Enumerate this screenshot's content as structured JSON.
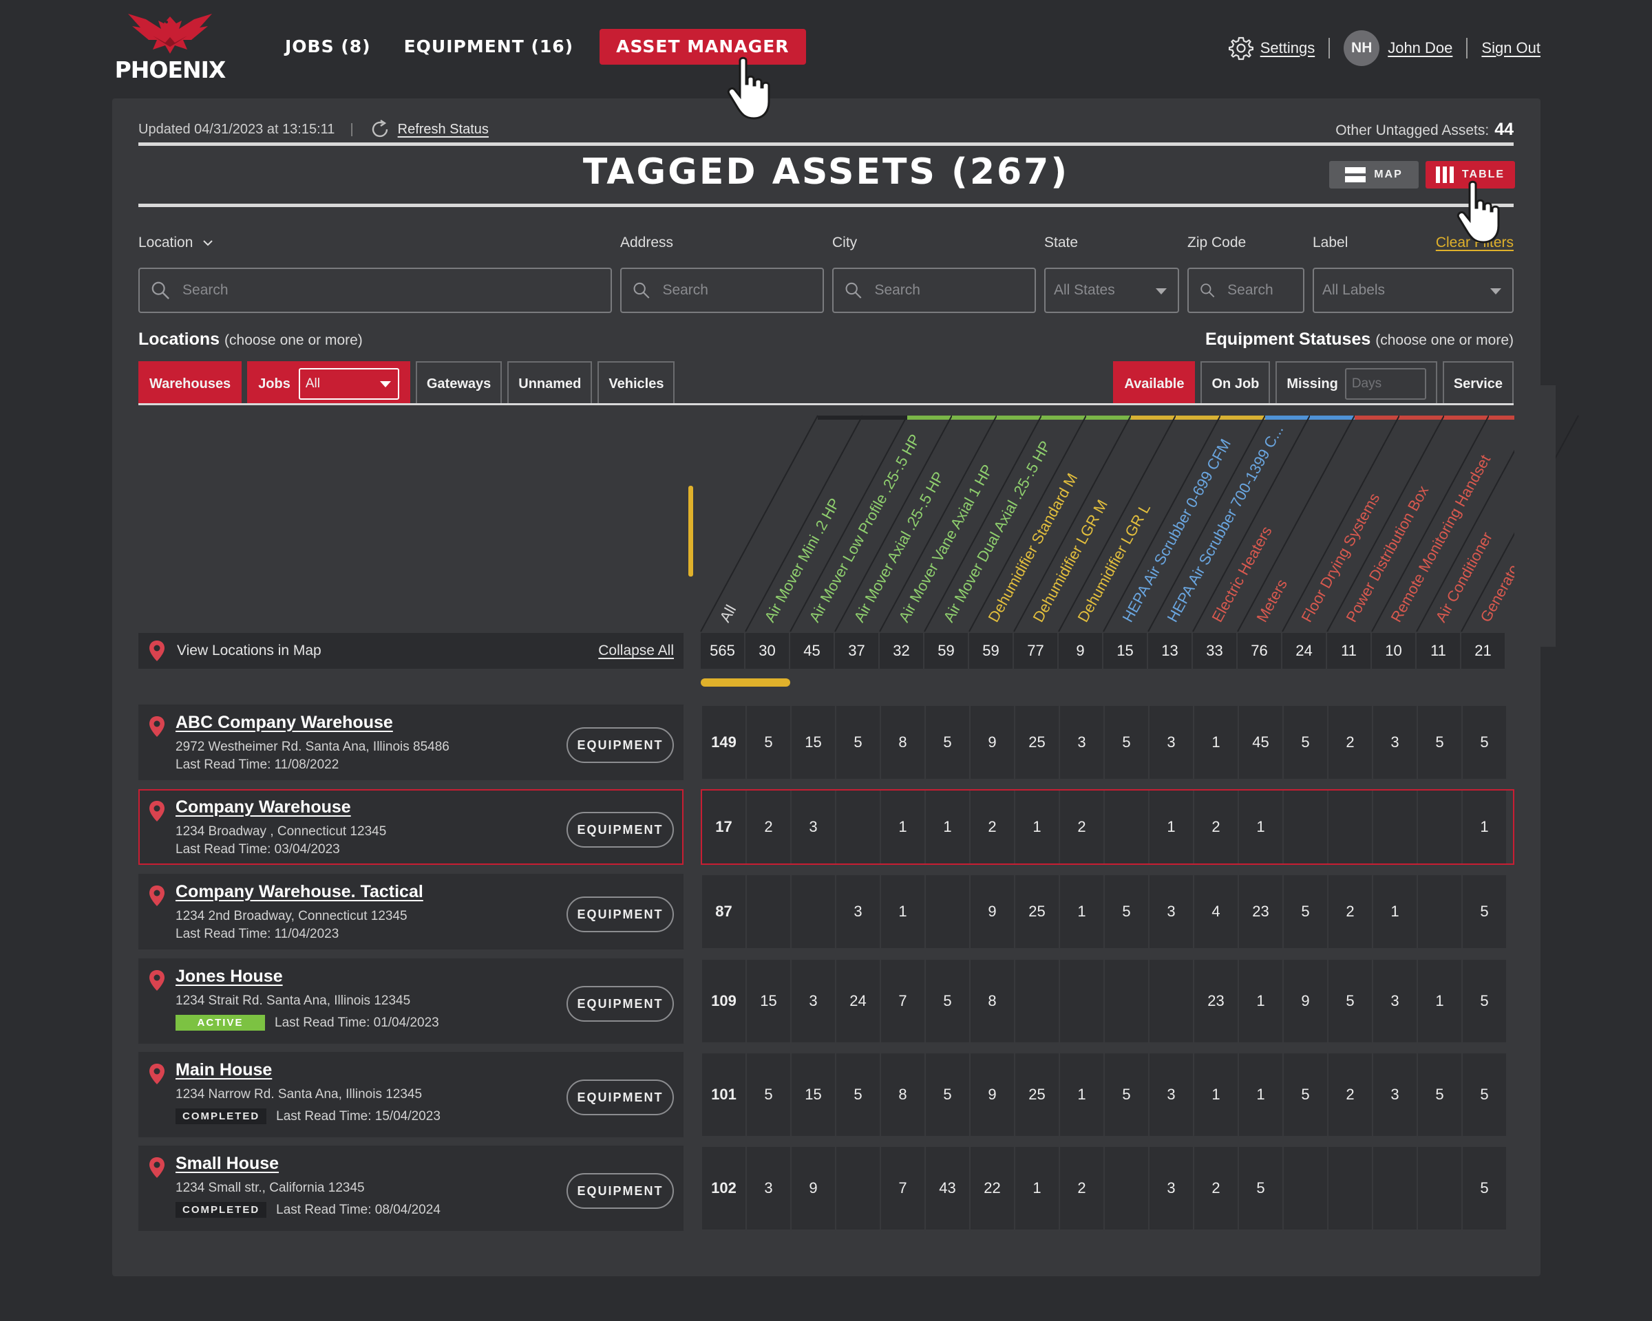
{
  "brand": {
    "name": "PHOENIX"
  },
  "nav": {
    "jobs": "JOBS (8)",
    "equipment": "EQUIPMENT (16)",
    "asset_manager": "ASSET MANAGER"
  },
  "user": {
    "settings": "Settings",
    "initials": "NH",
    "name": "John Doe",
    "sign_out": "Sign Out"
  },
  "status": {
    "updated": "Updated 04/31/2023 at 13:15:11",
    "refresh": "Refresh Status",
    "untagged_label": "Other Untagged Assets:",
    "untagged_count": "44"
  },
  "title": "TAGGED ASSETS (267)",
  "view": {
    "map": "MAP",
    "table": "TABLE"
  },
  "filters": {
    "location": "Location",
    "address": "Address",
    "city": "City",
    "state": "State",
    "zip": "Zip Code",
    "label": "Label",
    "clear": "Clear Filters",
    "search_placeholder": "Search",
    "all_states": "All States",
    "all_labels": "All Labels"
  },
  "locations": {
    "heading": "Locations",
    "hint": "(choose one or more)",
    "chips": [
      "Warehouses",
      "Jobs",
      "Gateways",
      "Unnamed",
      "Vehicles"
    ],
    "jobs_select": "All"
  },
  "statuses": {
    "heading": "Equipment Statuses",
    "hint": "(choose one or more)",
    "available": "Available",
    "on_job": "On Job",
    "missing": "Missing",
    "days_placeholder": "Days",
    "service": "Service"
  },
  "table": {
    "view_in_map": "View Locations in Map",
    "collapse_all": "Collapse All",
    "equipment_btn": "EQUIPMENT",
    "columns": [
      {
        "label": "All",
        "color": "#d8d8d8",
        "bar": "#232427"
      },
      {
        "label": "Air Mover Mini .2 HP",
        "color": "#8fcf6e",
        "bar": "#232427"
      },
      {
        "label": "Air Mover Low Profile .25-.5 HP",
        "color": "#8fcf6e",
        "bar": "#7ab648"
      },
      {
        "label": "Air Mover Axial .25-.5 HP",
        "color": "#8fcf6e",
        "bar": "#7ab648"
      },
      {
        "label": "Air Mover Vane Axial 1 HP",
        "color": "#8fcf6e",
        "bar": "#7ab648"
      },
      {
        "label": "Air Mover Dual Axial .25-.5 HP",
        "color": "#8fcf6e",
        "bar": "#7ab648"
      },
      {
        "label": "Dehumidifier Standard M",
        "color": "#e3bf3d",
        "bar": "#7ab648"
      },
      {
        "label": "Dehumidifier LGR M",
        "color": "#e3bf3d",
        "bar": "#d8b133"
      },
      {
        "label": "Dehumidifier LGR L",
        "color": "#e3bf3d",
        "bar": "#d8b133"
      },
      {
        "label": "HEPA Air Scrubber 0-699 CFM",
        "color": "#6aa6e0",
        "bar": "#d8b133"
      },
      {
        "label": "HEPA Air Scrubber 700-1399 C...",
        "color": "#6aa6e0",
        "bar": "#4f92d6"
      },
      {
        "label": "Electric Heaters",
        "color": "#d9594f",
        "bar": "#4f92d6"
      },
      {
        "label": "Meters",
        "color": "#d9594f",
        "bar": "#c8453d"
      },
      {
        "label": "Floor Drying Systems",
        "color": "#d9594f",
        "bar": "#c8453d"
      },
      {
        "label": "Power Distribution Box",
        "color": "#d9594f",
        "bar": "#c8453d"
      },
      {
        "label": "Remote Monitoring Handset",
        "color": "#d9594f",
        "bar": "#c8453d"
      },
      {
        "label": "Air Conditioner",
        "color": "#d9594f",
        "bar": "#c8453d"
      },
      {
        "label": "Generato...",
        "color": "#d9594f",
        "bar": "#c8453d"
      }
    ],
    "totals": [
      "565",
      "30",
      "45",
      "37",
      "32",
      "59",
      "59",
      "77",
      "9",
      "15",
      "13",
      "33",
      "76",
      "24",
      "11",
      "10",
      "11",
      "21"
    ],
    "rows": [
      {
        "name": "ABC Company Warehouse",
        "address": "2972 Westheimer Rd. Santa Ana, Illinois 85486",
        "badge": "",
        "read": "Last Read Time: 11/08/2022",
        "cells": [
          "149",
          "5",
          "15",
          "5",
          "8",
          "5",
          "9",
          "25",
          "3",
          "5",
          "3",
          "1",
          "45",
          "5",
          "2",
          "3",
          "5",
          "5"
        ]
      },
      {
        "name": "Company Warehouse",
        "address": "1234 Broadway , Connecticut 12345",
        "badge": "",
        "read": "Last Read Time: 03/04/2023",
        "cells": [
          "17",
          "2",
          "3",
          "",
          "1",
          "1",
          "2",
          "1",
          "2",
          "",
          "1",
          "2",
          "1",
          "",
          "",
          "",
          "",
          "1"
        ]
      },
      {
        "name": "Company Warehouse. Tactical",
        "address": "1234 2nd Broadway, Connecticut 12345",
        "badge": "",
        "read": "Last Read Time: 11/04/2023",
        "cells": [
          "87",
          "",
          "",
          "3",
          "1",
          "",
          "9",
          "25",
          "1",
          "5",
          "3",
          "4",
          "23",
          "5",
          "2",
          "1",
          "",
          "5"
        ]
      },
      {
        "name": "Jones House",
        "address": "1234 Strait Rd. Santa Ana, Illinois 12345",
        "badge": "ACTIVE",
        "read": "Last Read Time: 01/04/2023",
        "cells": [
          "109",
          "15",
          "3",
          "24",
          "7",
          "5",
          "8",
          "",
          "",
          "",
          "",
          "23",
          "1",
          "9",
          "5",
          "3",
          "1",
          "5"
        ]
      },
      {
        "name": "Main House",
        "address": "1234 Narrow Rd. Santa Ana, Illinois 12345",
        "badge": "COMPLETED",
        "read": "Last Read Time: 15/04/2023",
        "cells": [
          "101",
          "5",
          "15",
          "5",
          "8",
          "5",
          "9",
          "25",
          "1",
          "5",
          "3",
          "1",
          "1",
          "5",
          "2",
          "3",
          "5",
          "5"
        ]
      },
      {
        "name": "Small House",
        "address": "1234 Small str., California 12345",
        "badge": "COMPLETED",
        "read": "Last Read Time: 08/04/2024",
        "cells": [
          "102",
          "3",
          "9",
          "",
          "7",
          "43",
          "22",
          "1",
          "2",
          "",
          "3",
          "2",
          "5",
          "",
          "",
          "",
          "",
          "5"
        ]
      }
    ]
  }
}
